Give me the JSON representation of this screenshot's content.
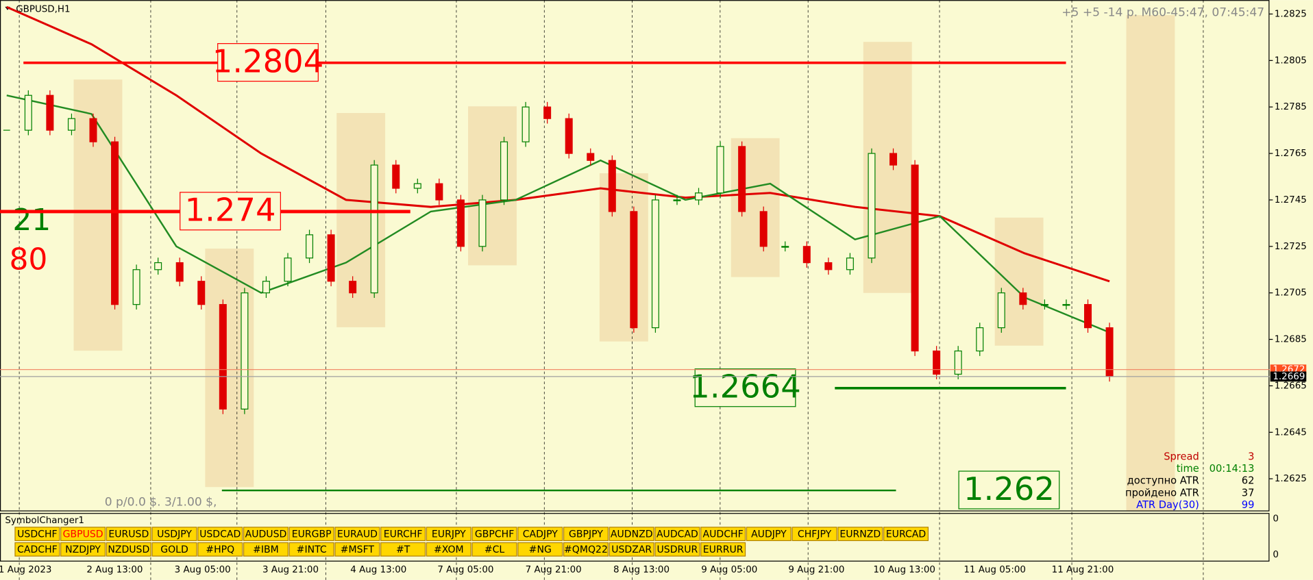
{
  "header": {
    "symbol": "GBPUSD,H1",
    "status": "+5 +5 -14 p. M60-45:47, 07:45:47"
  },
  "chart_data": {
    "type": "candlestick",
    "ylim": [
      1.2611,
      1.2831
    ],
    "yticks": [
      1.2825,
      1.2805,
      1.2785,
      1.2765,
      1.2745,
      1.2725,
      1.2705,
      1.2685,
      1.2665,
      1.2645,
      1.2625
    ],
    "x_labels": [
      "1 Aug 2023",
      "2 Aug 13:00",
      "3 Aug 05:00",
      "3 Aug 21:00",
      "4 Aug 13:00",
      "7 Aug 05:00",
      "7 Aug 21:00",
      "8 Aug 13:00",
      "9 Aug 05:00",
      "9 Aug 21:00",
      "10 Aug 13:00",
      "11 Aug 05:00",
      "11 Aug 21:00"
    ],
    "closes": [
      1.2775,
      1.279,
      1.2775,
      1.278,
      1.277,
      1.27,
      1.2715,
      1.2718,
      1.271,
      1.27,
      1.2655,
      1.2705,
      1.271,
      1.272,
      1.273,
      1.271,
      1.2705,
      1.276,
      1.275,
      1.2752,
      1.2745,
      1.2725,
      1.2745,
      1.277,
      1.2785,
      1.278,
      1.2765,
      1.2762,
      1.274,
      1.269,
      1.2745,
      1.2745,
      1.2748,
      1.2768,
      1.274,
      1.2725,
      1.2725,
      1.2718,
      1.2715,
      1.272,
      1.2765,
      1.276,
      1.268,
      1.267,
      1.268,
      1.269,
      1.2705,
      1.27,
      1.27,
      1.27,
      1.269,
      1.2669
    ],
    "ma_fast": [
      1.279,
      1.2782,
      1.2725,
      1.2705,
      1.2718,
      1.274,
      1.2745,
      1.2762,
      1.2745,
      1.2752,
      1.2728,
      1.2738,
      1.2703,
      1.2688
    ],
    "ma_slow": [
      1.2828,
      1.2812,
      1.279,
      1.2765,
      1.2745,
      1.2742,
      1.2745,
      1.275,
      1.2746,
      1.2748,
      1.2742,
      1.2738,
      1.2722,
      1.271
    ],
    "ma_periods": [
      21,
      80
    ],
    "levels": [
      {
        "value": 1.2804,
        "color": "#ff0000"
      },
      {
        "value": 1.274,
        "color": "#ff0000"
      },
      {
        "value": 1.2664,
        "color": "#008000"
      },
      {
        "value": 1.262,
        "color": "#008000"
      }
    ],
    "ask": 1.2672,
    "bid": 1.2669
  },
  "profit": "0 p/0.0 $.   3/1.00 $,",
  "info_panel": [
    {
      "label": "Spread",
      "value": 3,
      "color": "#c00000"
    },
    {
      "label": "time",
      "value": "00:14:13",
      "color": "#008000"
    },
    {
      "label": "доступно ATR",
      "value": 62,
      "color": "#000000"
    },
    {
      "label": "пройдено ATR",
      "value": 37,
      "color": "#000000"
    },
    {
      "label": "ATR Day(30)",
      "value": 99,
      "color": "#0000ff"
    }
  ],
  "symbol_changer": {
    "title": "SymbolChanger1",
    "active": [
      0,
      1
    ],
    "rows": [
      [
        "USDCHF",
        "GBPUSD",
        "EURUSD",
        "USDJPY",
        "USDCAD",
        "AUDUSD",
        "EURGBP",
        "EURAUD",
        "EURCHF",
        "EURJPY",
        "GBPCHF",
        "CADJPY",
        "GBPJPY",
        "AUDNZD",
        "AUDCAD",
        "AUDCHF",
        "AUDJPY",
        "CHFJPY",
        "EURNZD",
        "EURCAD"
      ],
      [
        "CADCHF",
        "NZDJPY",
        "NZDUSD",
        "GOLD",
        "#HPQ",
        "#IBM",
        "#INTC",
        "#MSFT",
        "#T",
        "#XOM",
        "#CL",
        "#NG",
        "#QMQ22",
        "USDZAR",
        "USDRUR",
        "EURRUR"
      ]
    ],
    "axis_ticks": [
      0,
      0
    ]
  }
}
